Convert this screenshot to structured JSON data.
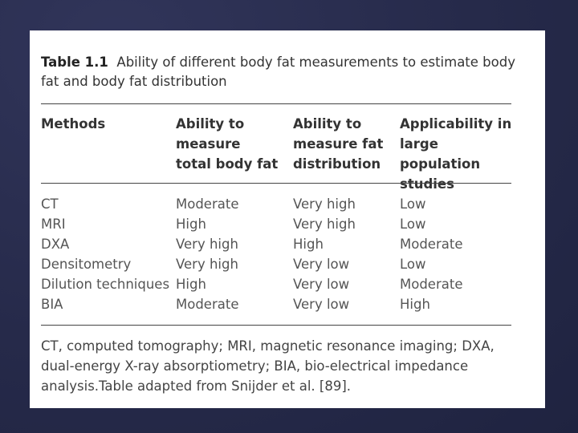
{
  "table": {
    "label": "Table 1.1",
    "title": "Ability of different body fat measurements to estimate body fat and body fat distribution",
    "headers": [
      "Methods",
      "Ability to measure total body fat",
      "Ability to measure fat distribution",
      "Applicability in large population studies"
    ],
    "rows": [
      [
        "CT",
        "Moderate",
        "Very high",
        "Low"
      ],
      [
        "MRI",
        "High",
        "Very high",
        "Low"
      ],
      [
        "DXA",
        "Very high",
        "High",
        "Moderate"
      ],
      [
        "Densitometry",
        "Very high",
        "Very low",
        "Low"
      ],
      [
        "Dilution techniques",
        "High",
        "Very low",
        "Moderate"
      ],
      [
        "BIA",
        "Moderate",
        "Very low",
        "High"
      ]
    ],
    "footnote": "CT, computed tomography; MRI, magnetic resonance imaging; DXA, dual-energy X-ray absorptiometry; BIA, bio-electrical impedance analysis.Table adapted from Snijder et al. [89]."
  }
}
